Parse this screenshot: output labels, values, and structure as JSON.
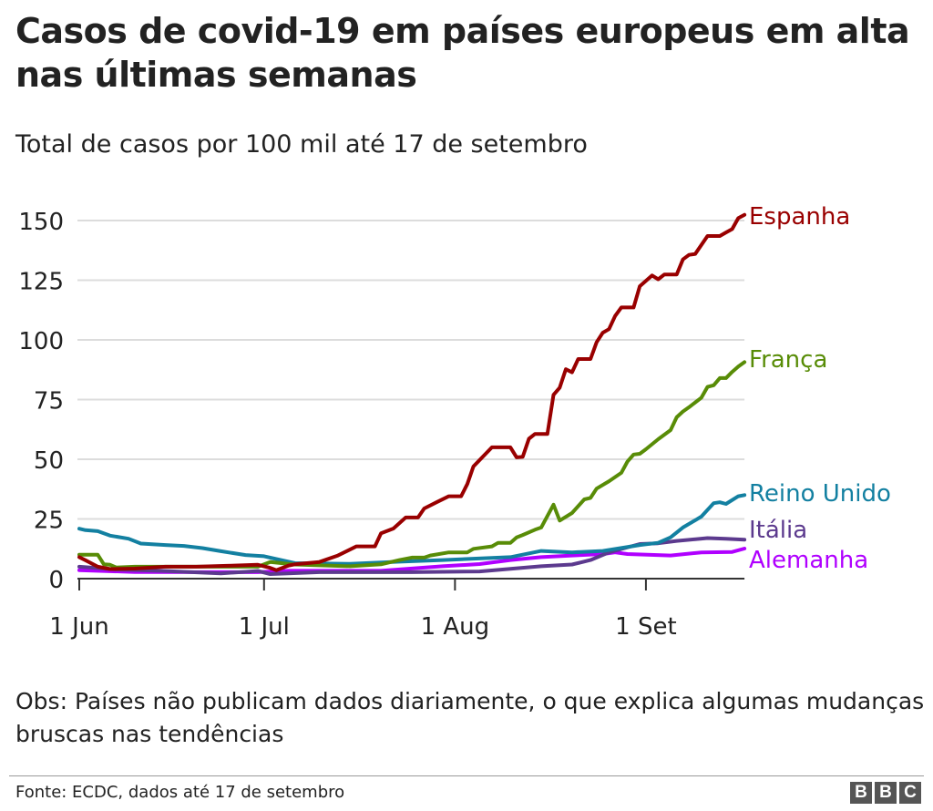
{
  "chart_data": {
    "type": "line",
    "title": "Casos de covid-19 em países europeus em alta nas últimas semanas",
    "subtitle": "Total de casos por 100 mil até 17 de setembro",
    "xlabel": "",
    "ylabel": "",
    "ylim": [
      0,
      150
    ],
    "yticks": [
      0,
      25,
      50,
      75,
      100,
      125,
      150
    ],
    "xticks": [
      {
        "date": "06-01",
        "label": "1 Jun"
      },
      {
        "date": "07-01",
        "label": "1 Jul"
      },
      {
        "date": "08-01",
        "label": "1 Aug"
      },
      {
        "date": "09-01",
        "label": "1 Set"
      }
    ],
    "xlim": [
      "06-01",
      "09-17"
    ],
    "grid": true,
    "legend": "direct labels at line ends",
    "series": [
      {
        "name": "Espanha",
        "color": "#990000",
        "points": [
          [
            "06-01",
            9
          ],
          [
            "06-02",
            7.7
          ],
          [
            "06-04",
            5
          ],
          [
            "06-06",
            4
          ],
          [
            "06-10",
            4.2
          ],
          [
            "06-15",
            5
          ],
          [
            "06-20",
            5
          ],
          [
            "06-25",
            5.4
          ],
          [
            "06-30",
            5.8
          ],
          [
            "07-02",
            4.5
          ],
          [
            "07-03",
            3.5
          ],
          [
            "07-05",
            5.5
          ],
          [
            "07-06",
            6
          ],
          [
            "07-10",
            7
          ],
          [
            "07-13",
            9.7
          ],
          [
            "07-16",
            13.5
          ],
          [
            "07-19",
            13.5
          ],
          [
            "07-20",
            19
          ],
          [
            "07-22",
            21
          ],
          [
            "07-24",
            25.6
          ],
          [
            "07-26",
            25.6
          ],
          [
            "07-27",
            29.4
          ],
          [
            "07-29",
            32
          ],
          [
            "07-31",
            34.5
          ],
          [
            "08-02",
            34.5
          ],
          [
            "08-03",
            39.6
          ],
          [
            "08-04",
            47
          ],
          [
            "08-07",
            55
          ],
          [
            "08-10",
            55
          ],
          [
            "08-11",
            50.8
          ],
          [
            "08-12",
            51
          ],
          [
            "08-13",
            58.6
          ],
          [
            "08-14",
            60.6
          ],
          [
            "08-16",
            60.6
          ],
          [
            "08-17",
            77
          ],
          [
            "08-18",
            80
          ],
          [
            "08-19",
            87.7
          ],
          [
            "08-20",
            86.4
          ],
          [
            "08-21",
            92
          ],
          [
            "08-23",
            92
          ],
          [
            "08-24",
            99
          ],
          [
            "08-25",
            103
          ],
          [
            "08-26",
            104.5
          ],
          [
            "08-27",
            110
          ],
          [
            "08-28",
            113.6
          ],
          [
            "08-30",
            113.6
          ],
          [
            "08-31",
            122.5
          ],
          [
            "09-02",
            127
          ],
          [
            "09-03",
            125.4
          ],
          [
            "09-04",
            127.4
          ],
          [
            "09-06",
            127.4
          ],
          [
            "09-07",
            133.7
          ],
          [
            "09-08",
            135.6
          ],
          [
            "09-09",
            136
          ],
          [
            "09-11",
            143.5
          ],
          [
            "09-13",
            143.5
          ],
          [
            "09-14",
            145
          ],
          [
            "09-15",
            146.4
          ],
          [
            "09-16",
            151
          ],
          [
            "09-17",
            152.4
          ]
        ]
      },
      {
        "name": "França",
        "color": "#588c07",
        "points": [
          [
            "06-01",
            10
          ],
          [
            "06-04",
            10
          ],
          [
            "06-05",
            6
          ],
          [
            "06-06",
            5.8
          ],
          [
            "06-07",
            4.7
          ],
          [
            "06-10",
            5
          ],
          [
            "06-20",
            5
          ],
          [
            "06-30",
            5
          ],
          [
            "07-02",
            7
          ],
          [
            "07-06",
            5.9
          ],
          [
            "07-15",
            5.2
          ],
          [
            "07-20",
            6
          ],
          [
            "07-23",
            7.8
          ],
          [
            "07-25",
            8.8
          ],
          [
            "07-27",
            8.8
          ],
          [
            "07-28",
            9.7
          ],
          [
            "07-31",
            11
          ],
          [
            "08-03",
            11
          ],
          [
            "08-04",
            12.5
          ],
          [
            "08-07",
            13.5
          ],
          [
            "08-08",
            15
          ],
          [
            "08-10",
            15
          ],
          [
            "08-11",
            17.3
          ],
          [
            "08-12",
            18.3
          ],
          [
            "08-14",
            20.5
          ],
          [
            "08-15",
            21.4
          ],
          [
            "08-17",
            31
          ],
          [
            "08-18",
            24.3
          ],
          [
            "08-20",
            27.5
          ],
          [
            "08-22",
            33.2
          ],
          [
            "08-23",
            33.8
          ],
          [
            "08-24",
            37.7
          ],
          [
            "08-26",
            40.8
          ],
          [
            "08-28",
            44.3
          ],
          [
            "08-29",
            49
          ],
          [
            "08-30",
            52
          ],
          [
            "08-31",
            52.3
          ],
          [
            "09-01",
            54.2
          ],
          [
            "09-03",
            58.4
          ],
          [
            "09-05",
            62.2
          ],
          [
            "09-06",
            67.6
          ],
          [
            "09-07",
            70
          ],
          [
            "09-08",
            71.8
          ],
          [
            "09-10",
            75.8
          ],
          [
            "09-11",
            80.3
          ],
          [
            "09-12",
            81
          ],
          [
            "09-13",
            84
          ],
          [
            "09-14",
            84
          ],
          [
            "09-15",
            86.6
          ],
          [
            "09-16",
            88.8
          ],
          [
            "09-17",
            90.7
          ]
        ]
      },
      {
        "name": "Reino Unido",
        "color": "#1380a1",
        "points": [
          [
            "06-01",
            20.9
          ],
          [
            "06-02",
            20.3
          ],
          [
            "06-04",
            19.9
          ],
          [
            "06-06",
            18
          ],
          [
            "06-09",
            16.7
          ],
          [
            "06-11",
            14.7
          ],
          [
            "06-15",
            14.1
          ],
          [
            "06-18",
            13.7
          ],
          [
            "06-21",
            12.8
          ],
          [
            "06-24",
            11.5
          ],
          [
            "06-28",
            9.9
          ],
          [
            "07-01",
            9.4
          ],
          [
            "07-03",
            8.2
          ],
          [
            "07-06",
            6.5
          ],
          [
            "07-15",
            6.2
          ],
          [
            "07-23",
            7.1
          ],
          [
            "07-30",
            7.8
          ],
          [
            "08-10",
            9
          ],
          [
            "08-15",
            11.6
          ],
          [
            "08-20",
            11
          ],
          [
            "08-25",
            11.6
          ],
          [
            "08-31",
            14.1
          ],
          [
            "09-03",
            15
          ],
          [
            "09-05",
            17.3
          ],
          [
            "09-07",
            21.4
          ],
          [
            "09-10",
            26
          ],
          [
            "09-12",
            31.6
          ],
          [
            "09-13",
            32
          ],
          [
            "09-14",
            31.3
          ],
          [
            "09-16",
            34.5
          ],
          [
            "09-17",
            35
          ]
        ]
      },
      {
        "name": "Itália",
        "color": "#5c3a8e",
        "points": [
          [
            "06-01",
            5
          ],
          [
            "06-07",
            3.8
          ],
          [
            "06-15",
            3.2
          ],
          [
            "06-24",
            2.2
          ],
          [
            "06-30",
            3.2
          ],
          [
            "07-02",
            1.9
          ],
          [
            "07-03",
            2
          ],
          [
            "07-10",
            2.7
          ],
          [
            "07-25",
            2.7
          ],
          [
            "08-05",
            3
          ],
          [
            "08-15",
            5.2
          ],
          [
            "08-20",
            5.9
          ],
          [
            "08-23",
            7.8
          ],
          [
            "08-26",
            11
          ],
          [
            "08-31",
            14.5
          ],
          [
            "09-03",
            14.8
          ],
          [
            "09-06",
            15.8
          ],
          [
            "09-11",
            17
          ],
          [
            "09-14",
            16.7
          ],
          [
            "09-17",
            16.3
          ]
        ]
      },
      {
        "name": "Alemanha",
        "color": "#b000ff",
        "points": [
          [
            "06-01",
            3.5
          ],
          [
            "06-10",
            2.8
          ],
          [
            "06-30",
            2.7
          ],
          [
            "07-05",
            3.3
          ],
          [
            "07-20",
            3.3
          ],
          [
            "07-30",
            5.2
          ],
          [
            "08-05",
            6.1
          ],
          [
            "08-10",
            7.8
          ],
          [
            "08-15",
            9
          ],
          [
            "08-20",
            9.7
          ],
          [
            "08-25",
            10.3
          ],
          [
            "08-27",
            11
          ],
          [
            "08-29",
            10.3
          ],
          [
            "09-05",
            9.7
          ],
          [
            "09-10",
            11
          ],
          [
            "09-15",
            11.2
          ],
          [
            "09-17",
            12.6
          ]
        ]
      }
    ]
  },
  "note": "Obs: Países não publicam dados diariamente, o que explica algumas mudanças bruscas nas tendências",
  "source": "Fonte: ECDC, dados até 17 de setembro",
  "logo": [
    "B",
    "B",
    "C"
  ]
}
